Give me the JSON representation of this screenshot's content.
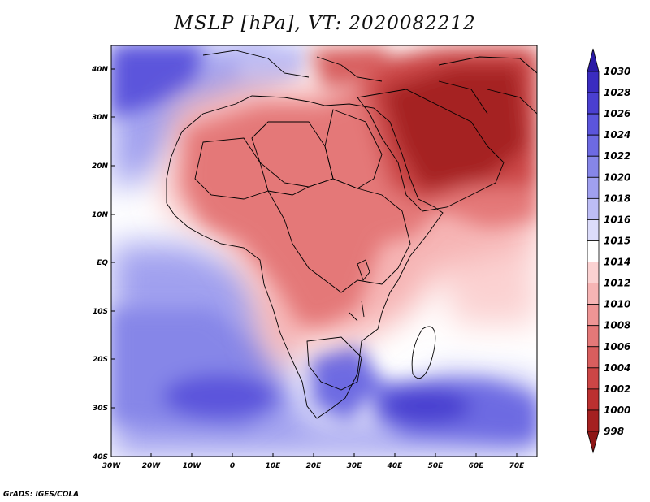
{
  "title": "MSLP [hPa], VT: 2020082212",
  "credit": "GrADS: IGES/COLA",
  "map": {
    "type": "filled_contour_map",
    "variable": "MSLP",
    "units": "hPa",
    "valid_time": "2020082212",
    "lon_range": [
      -30,
      76
    ],
    "lat_range": [
      -40,
      45
    ],
    "lat_ticks": [
      "40N",
      "30N",
      "20N",
      "10N",
      "EQ",
      "10S",
      "20S",
      "30S",
      "40S"
    ],
    "lon_ticks": [
      "30W",
      "20W",
      "10W",
      "0",
      "10E",
      "20E",
      "30E",
      "40E",
      "50E",
      "60E",
      "70E"
    ]
  },
  "colorbar": {
    "levels": [
      "1030",
      "1028",
      "1026",
      "1024",
      "1022",
      "1020",
      "1018",
      "1016",
      "1015",
      "1014",
      "1012",
      "1010",
      "1008",
      "1006",
      "1004",
      "1002",
      "1000",
      "998"
    ],
    "colors": [
      "#2a1aa6",
      "#3a2cc0",
      "#4a3fd0",
      "#5b55dc",
      "#6d6ae2",
      "#8686e8",
      "#a0a0ef",
      "#bdbdf5",
      "#dcdcfa",
      "#ffffff",
      "#fbd2d2",
      "#f6b4b4",
      "#ee9595",
      "#e47878",
      "#d85e5e",
      "#cc4646",
      "#bb3030",
      "#a52020",
      "#8e1616"
    ]
  }
}
